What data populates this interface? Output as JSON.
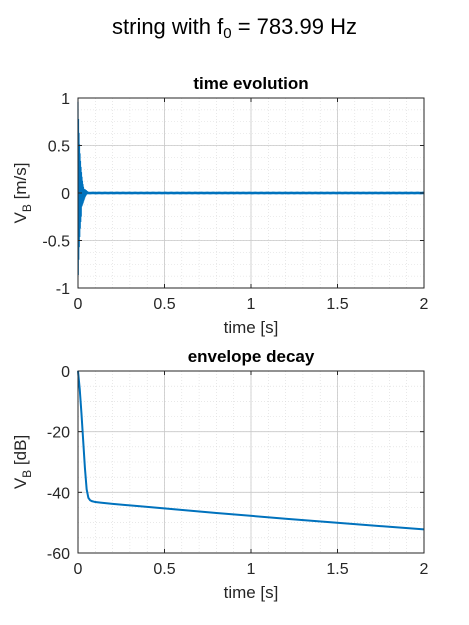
{
  "figure": {
    "title_main": "string with f",
    "title_sub": "0",
    "title_tail": " = 783.99 Hz"
  },
  "chart_data": [
    {
      "type": "line",
      "title": "time evolution",
      "xlabel": "time [s]",
      "ylabel_main": "V",
      "ylabel_sub": "B",
      "ylabel_tail": " [m/s]",
      "xlim": [
        0,
        2
      ],
      "ylim": [
        -1,
        1
      ],
      "xticks": [
        0,
        0.5,
        1,
        1.5,
        2
      ],
      "xtick_labels": [
        "0",
        "0.5",
        "1",
        "1.5",
        "2"
      ],
      "yticks": [
        -1,
        -0.5,
        0,
        0.5,
        1
      ],
      "ytick_labels": [
        "-1",
        "-0.5",
        "0",
        "0.5",
        "1"
      ],
      "grid": true,
      "minor_grid": true,
      "color": "#0072BD",
      "signal": {
        "kind": "decaying-oscillation",
        "peak_amplitude": 0.96,
        "decay_end_time": 0.06,
        "residual_amplitude": 0.012
      }
    },
    {
      "type": "line",
      "title": "envelope decay",
      "xlabel": "time [s]",
      "ylabel_main": "V",
      "ylabel_sub": "B",
      "ylabel_tail": " [dB]",
      "xlim": [
        0,
        2
      ],
      "ylim": [
        -60,
        0
      ],
      "xticks": [
        0,
        0.5,
        1,
        1.5,
        2
      ],
      "xtick_labels": [
        "0",
        "0.5",
        "1",
        "1.5",
        "2"
      ],
      "yticks": [
        -60,
        -40,
        -20,
        0
      ],
      "ytick_labels": [
        "-60",
        "-40",
        "-20",
        "0"
      ],
      "grid": true,
      "minor_grid": true,
      "color": "#0072BD",
      "x": [
        0,
        0.01,
        0.02,
        0.03,
        0.04,
        0.05,
        0.06,
        0.07,
        0.08,
        0.1,
        0.13,
        0.2,
        0.4,
        0.8,
        1.2,
        1.6,
        2.0
      ],
      "y": [
        0,
        -6,
        -14,
        -23,
        -32,
        -39,
        -41.8,
        -42.6,
        -42.9,
        -43.2,
        -43.4,
        -43.8,
        -44.8,
        -46.8,
        -48.7,
        -50.5,
        -52.2
      ]
    }
  ]
}
